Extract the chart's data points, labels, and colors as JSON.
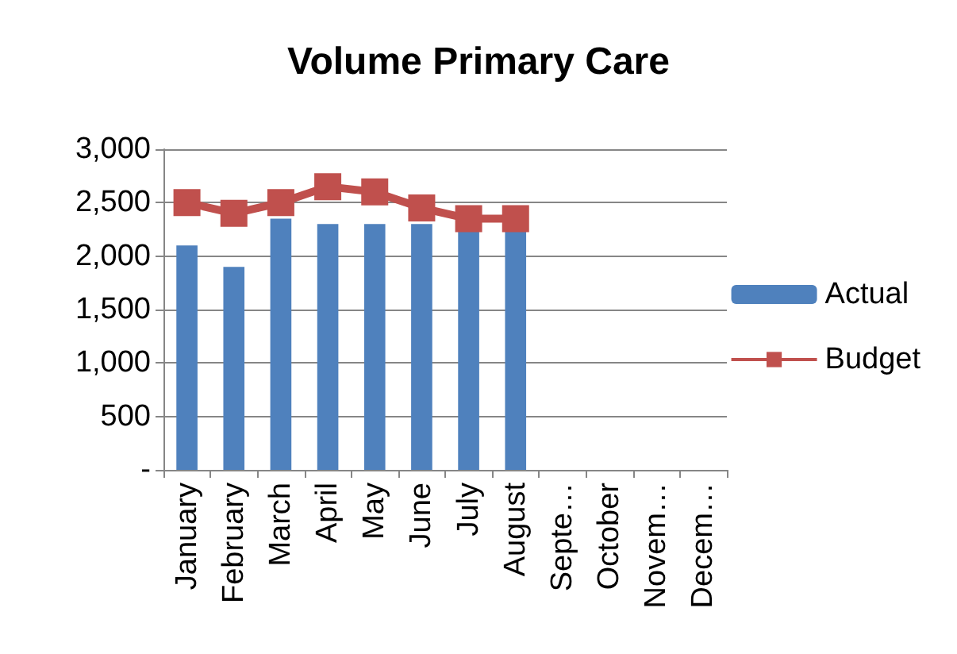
{
  "chart_data": {
    "type": "bar",
    "title": "Volume Primary Care",
    "categories": [
      "January",
      "February",
      "March",
      "April",
      "May",
      "June",
      "July",
      "August",
      "Septe…",
      "October",
      "Novem…",
      "Decem…"
    ],
    "series": [
      {
        "name": "Actual",
        "color": "#4f81bd",
        "values": [
          2100,
          1900,
          2350,
          2300,
          2300,
          2300,
          2250,
          2250,
          null,
          null,
          null,
          null
        ]
      },
      {
        "name": "Budget",
        "type": "line",
        "color": "#c0504d",
        "values": [
          2500,
          2400,
          2500,
          2650,
          2600,
          2450,
          2350,
          2350,
          null,
          null,
          null,
          null
        ]
      }
    ],
    "ylim": [
      0,
      3000
    ],
    "yticks": [
      {
        "value": 0,
        "label": "-"
      },
      500,
      {
        "value": 1000,
        "label": "1,000"
      },
      {
        "value": 1500,
        "label": "1,500"
      },
      {
        "value": 2000,
        "label": "2,000"
      },
      {
        "value": 2500,
        "label": "2,500"
      },
      {
        "value": 3000,
        "label": "3,000"
      }
    ],
    "grid": "y",
    "legend": "right",
    "marker": "square"
  }
}
